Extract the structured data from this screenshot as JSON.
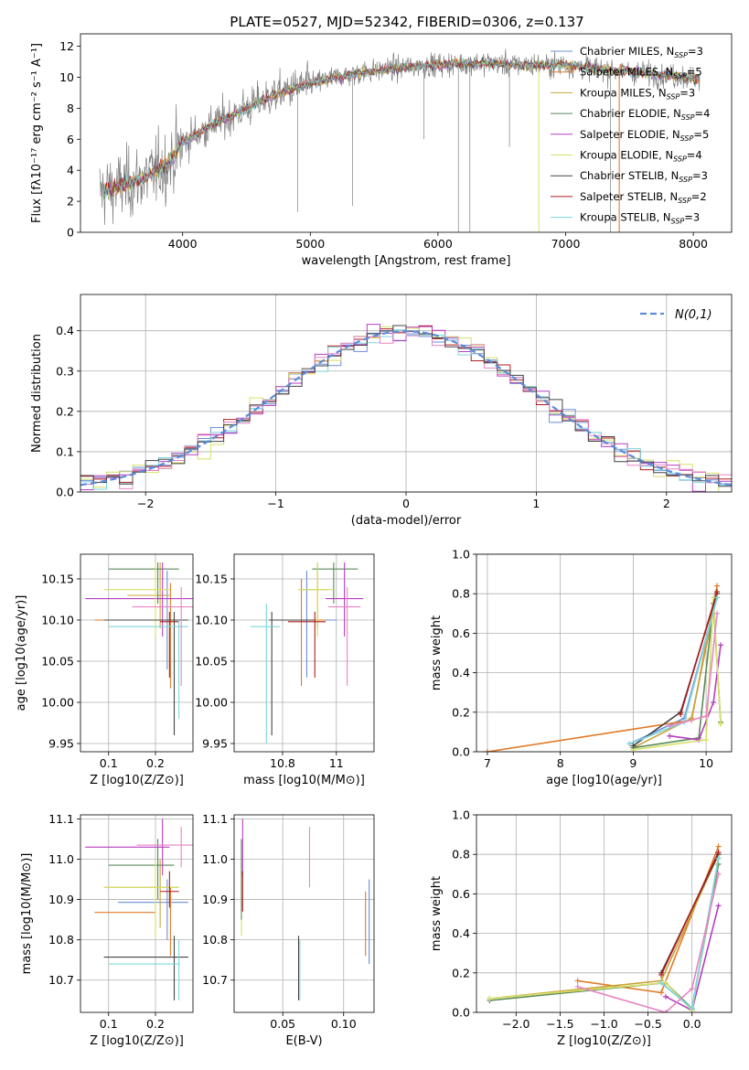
{
  "figure": {
    "title": "PLATE=0527, MJD=52342, FIBERID=0306, z=0.137"
  },
  "colors": {
    "Chabrier MILES": "#6b8fd6",
    "Salpeter MILES": "#e07b26",
    "Kroupa MILES": "#c8a33a",
    "Chabrier ELODIE": "#5a8a5a",
    "Salpeter ELODIE": "#b53ec0",
    "Kroupa ELODIE": "#d6e067",
    "Chabrier STELIB": "#444444",
    "Salpeter STELIB": "#b01c1c",
    "Kroupa STELIB": "#7dd6dc",
    "data": "#808080",
    "normal": "#5b8bd9",
    "pink": "#e884c4"
  },
  "chart_data": [
    {
      "id": "spectrum",
      "type": "line",
      "title": "PLATE=0527, MJD=52342, FIBERID=0306, z=0.137",
      "xlabel": "wavelength [Angstrom, rest frame]",
      "ylabel": "Flux [fλ10⁻¹⁷ erg cm⁻² s⁻¹ A⁻¹]",
      "xlim": [
        3200,
        8300
      ],
      "ylim": [
        0,
        12.8
      ],
      "xticks": [
        4000,
        5000,
        6000,
        7000,
        8000
      ],
      "yticks": [
        0,
        2,
        4,
        6,
        8,
        10,
        12
      ],
      "grid": false,
      "legend_position": "top-right",
      "legend": [
        "Chabrier MILES, N_SSP=3",
        "Salpeter MILES, N_SSP=5",
        "Kroupa MILES, N_SSP=3",
        "Chabrier ELODIE, N_SSP=4",
        "Salpeter ELODIE, N_SSP=5",
        "Kroupa ELODIE, N_SSP=4",
        "Chabrier STELIB, N_SSP=3",
        "Salpeter STELIB, N_SSP=2",
        "Kroupa STELIB, N_SSP=3"
      ],
      "continuum": {
        "x": [
          3350,
          3500,
          3700,
          3900,
          4000,
          4200,
          4400,
          4600,
          4800,
          5000,
          5200,
          5400,
          5600,
          5800,
          6000,
          6200,
          6400,
          6600,
          6800,
          7000,
          7200,
          7400,
          7600,
          7800,
          8050
        ],
        "y": [
          2.6,
          2.9,
          3.5,
          4.5,
          5.8,
          6.8,
          7.6,
          8.4,
          9.1,
          9.6,
          10.0,
          10.3,
          10.5,
          10.7,
          10.8,
          10.9,
          10.9,
          10.8,
          10.8,
          10.8,
          10.6,
          10.4,
          10.3,
          10.1,
          9.9
        ]
      }
    },
    {
      "id": "residuals",
      "type": "line",
      "xlabel": "(data-model)/error",
      "ylabel": "Normed distribution",
      "xlim": [
        -2.5,
        2.5
      ],
      "ylim": [
        0,
        0.49
      ],
      "xticks": [
        -2,
        -1,
        0,
        1,
        2
      ],
      "yticks": [
        0.0,
        0.1,
        0.2,
        0.3,
        0.4
      ],
      "grid": true,
      "legend_position": "top-right",
      "legend": [
        "N(0,1)"
      ]
    },
    {
      "id": "age-vs-Z",
      "type": "scatter",
      "xlabel": "Z [log10(Z/Z⊙)]",
      "ylabel": "age  [log10(age/yr)]",
      "xlim": [
        0.04,
        0.28
      ],
      "ylim": [
        9.94,
        10.18
      ],
      "xticks": [
        0.1,
        0.2
      ],
      "yticks": [
        9.95,
        10.0,
        10.05,
        10.1,
        10.15
      ],
      "grid": true,
      "points": [
        {
          "model": "Chabrier MILES",
          "x": 0.225,
          "y": 10.1,
          "xerr": [
            0.09,
            0.21
          ],
          "yerr": [
            10.04,
            10.16
          ]
        },
        {
          "model": "Salpeter MILES",
          "x": 0.232,
          "y": 10.1,
          "xerr": [
            0.07,
            0.26
          ],
          "yerr": [
            10.017,
            10.145
          ]
        },
        {
          "model": "Kroupa MILES",
          "x": 0.21,
          "y": 10.13,
          "xerr": [
            0.14,
            0.23
          ],
          "yerr": [
            10.09,
            10.17
          ]
        },
        {
          "model": "Chabrier ELODIE",
          "x": 0.205,
          "y": 10.162,
          "xerr": [
            0.1,
            0.25
          ],
          "yerr": [
            10.12,
            10.17
          ]
        },
        {
          "model": "Salpeter ELODIE",
          "x": 0.215,
          "y": 10.126,
          "xerr": [
            0.05,
            0.28
          ],
          "yerr": [
            10.08,
            10.17
          ]
        },
        {
          "model": "Kroupa ELODIE",
          "x": 0.2,
          "y": 10.137,
          "xerr": [
            0.09,
            0.23
          ],
          "yerr": [
            10.08,
            10.17
          ]
        },
        {
          "model": "Chabrier STELIB",
          "x": 0.24,
          "y": 10.1,
          "xerr": [
            0.09,
            0.27
          ],
          "yerr": [
            9.96,
            10.11
          ]
        },
        {
          "model": "Salpeter STELIB",
          "x": 0.23,
          "y": 10.098,
          "xerr": [
            0.21,
            0.25
          ],
          "yerr": [
            10.03,
            10.11
          ]
        },
        {
          "model": "Kroupa STELIB",
          "x": 0.25,
          "y": 10.092,
          "xerr": [
            0.1,
            0.27
          ],
          "yerr": [
            9.98,
            10.1
          ]
        },
        {
          "model": "pink",
          "x": 0.255,
          "y": 10.116,
          "xerr": [
            0.15,
            0.28
          ],
          "yerr": [
            10.02,
            10.14
          ]
        }
      ]
    },
    {
      "id": "age-vs-mass",
      "type": "scatter",
      "xlabel": "mass [log10(M/M⊙)]",
      "xlim": [
        10.62,
        11.14
      ],
      "ylim": [
        9.94,
        10.18
      ],
      "xticks": [
        10.8,
        11.0
      ],
      "yticks": [
        9.95,
        10.0,
        10.05,
        10.1,
        10.15
      ],
      "grid": true,
      "points": [
        {
          "model": "Chabrier MILES",
          "x": 10.89,
          "y": 10.1,
          "xerr": [
            10.77,
            11.0
          ],
          "yerr": [
            10.03,
            10.16
          ]
        },
        {
          "model": "Salpeter MILES",
          "x": 10.87,
          "y": 10.1,
          "xerr": [
            10.78,
            10.96
          ],
          "yerr": [
            10.02,
            10.15
          ]
        },
        {
          "model": "Kroupa MILES",
          "x": 10.93,
          "y": 10.137,
          "xerr": [
            10.86,
            10.97
          ],
          "yerr": [
            10.09,
            10.17
          ]
        },
        {
          "model": "Chabrier ELODIE",
          "x": 10.99,
          "y": 10.162,
          "xerr": [
            10.91,
            11.08
          ],
          "yerr": [
            10.12,
            10.17
          ]
        },
        {
          "model": "Salpeter ELODIE",
          "x": 11.03,
          "y": 10.126,
          "xerr": [
            10.96,
            11.1
          ],
          "yerr": [
            10.08,
            10.17
          ]
        },
        {
          "model": "Kroupa ELODIE",
          "x": 10.93,
          "y": 10.137,
          "xerr": [
            10.86,
            10.99
          ],
          "yerr": [
            10.08,
            10.17
          ]
        },
        {
          "model": "Chabrier STELIB",
          "x": 10.76,
          "y": 10.1,
          "xerr": [
            10.75,
            10.92
          ],
          "yerr": [
            9.96,
            10.11
          ]
        },
        {
          "model": "Salpeter STELIB",
          "x": 10.92,
          "y": 10.098,
          "xerr": [
            10.82,
            10.96
          ],
          "yerr": [
            10.03,
            10.11
          ]
        },
        {
          "model": "Kroupa STELIB",
          "x": 10.74,
          "y": 10.092,
          "xerr": [
            10.68,
            10.79
          ],
          "yerr": [
            9.95,
            10.12
          ]
        },
        {
          "model": "pink",
          "x": 11.04,
          "y": 10.116,
          "xerr": [
            10.97,
            11.09
          ],
          "yerr": [
            10.02,
            10.14
          ]
        }
      ]
    },
    {
      "id": "mass-weight-vs-age",
      "type": "line",
      "xlabel": "age  [log10(age/yr)]",
      "ylabel": "mass weight",
      "xlim": [
        6.85,
        10.35
      ],
      "ylim": [
        0,
        1.0
      ],
      "xticks": [
        7,
        8,
        9,
        10
      ],
      "yticks": [
        0.0,
        0.2,
        0.4,
        0.6,
        0.8,
        1.0
      ],
      "grid": true,
      "series": [
        {
          "model": "Chabrier MILES",
          "x": [
            8.95,
            9.7,
            10.15
          ],
          "y": [
            0.04,
            0.17,
            0.78
          ]
        },
        {
          "model": "Salpeter MILES",
          "x": [
            7.0,
            9.8,
            10.15
          ],
          "y": [
            0.0,
            0.16,
            0.84
          ]
        },
        {
          "model": "Kroupa MILES",
          "x": [
            9.0,
            9.8,
            10.15
          ],
          "y": [
            0.02,
            0.17,
            0.8
          ]
        },
        {
          "model": "Chabrier ELODIE",
          "x": [
            9.0,
            9.9,
            10.1,
            10.2
          ],
          "y": [
            0.02,
            0.07,
            0.75,
            0.15
          ]
        },
        {
          "model": "Salpeter ELODIE",
          "x": [
            9.5,
            9.9,
            10.1,
            10.2
          ],
          "y": [
            0.08,
            0.06,
            0.25,
            0.54
          ]
        },
        {
          "model": "Kroupa ELODIE",
          "x": [
            9.0,
            10.0,
            10.1,
            10.2
          ],
          "y": [
            0.01,
            0.06,
            0.78,
            0.14
          ]
        },
        {
          "model": "Chabrier STELIB",
          "x": [
            9.0,
            9.65,
            10.15
          ],
          "y": [
            0.03,
            0.2,
            0.8
          ]
        },
        {
          "model": "Salpeter STELIB",
          "x": [
            9.65,
            10.15
          ],
          "y": [
            0.19,
            0.81
          ]
        },
        {
          "model": "Kroupa STELIB",
          "x": [
            8.95,
            9.7,
            10.15
          ],
          "y": [
            0.04,
            0.15,
            0.78
          ]
        },
        {
          "model": "pink",
          "x": [
            9.5,
            10.0,
            10.15
          ],
          "y": [
            0.13,
            0.18,
            0.7
          ]
        }
      ]
    },
    {
      "id": "mass-vs-Z",
      "type": "scatter",
      "xlabel": "Z [log10(Z/Z⊙)]",
      "ylabel": "mass [log10(M/M⊙)]",
      "xlim": [
        0.04,
        0.28
      ],
      "ylim": [
        10.62,
        11.11
      ],
      "xticks": [
        0.1,
        0.2
      ],
      "yticks": [
        10.7,
        10.8,
        10.9,
        11.0,
        11.1
      ],
      "grid": true,
      "points": [
        {
          "model": "Chabrier MILES",
          "x": 0.225,
          "y": 10.893,
          "xerr": [
            0.12,
            0.27
          ],
          "yerr": [
            10.8,
            10.95
          ]
        },
        {
          "model": "Salpeter MILES",
          "x": 0.232,
          "y": 10.868,
          "xerr": [
            0.07,
            0.2
          ],
          "yerr": [
            10.76,
            10.93
          ]
        },
        {
          "model": "Kroupa MILES",
          "x": 0.21,
          "y": 10.93,
          "xerr": [
            0.09,
            0.25
          ],
          "yerr": [
            10.83,
            11.0
          ]
        },
        {
          "model": "Chabrier ELODIE",
          "x": 0.205,
          "y": 10.985,
          "xerr": [
            0.1,
            0.24
          ],
          "yerr": [
            10.9,
            11.05
          ]
        },
        {
          "model": "Salpeter ELODIE",
          "x": 0.215,
          "y": 11.03,
          "xerr": [
            0.05,
            0.23
          ],
          "yerr": [
            10.96,
            11.1
          ]
        },
        {
          "model": "Kroupa ELODIE",
          "x": 0.2,
          "y": 10.93,
          "xerr": [
            0.09,
            0.25
          ],
          "yerr": [
            10.8,
            11.0
          ]
        },
        {
          "model": "Chabrier STELIB",
          "x": 0.24,
          "y": 10.757,
          "xerr": [
            0.09,
            0.27
          ],
          "yerr": [
            10.65,
            10.81
          ]
        },
        {
          "model": "Salpeter STELIB",
          "x": 0.23,
          "y": 10.92,
          "xerr": [
            0.21,
            0.25
          ],
          "yerr": [
            10.88,
            10.97
          ]
        },
        {
          "model": "Kroupa STELIB",
          "x": 0.25,
          "y": 10.74,
          "xerr": [
            0.1,
            0.25
          ],
          "yerr": [
            10.65,
            10.8
          ]
        },
        {
          "model": "pink",
          "x": 0.255,
          "y": 11.035,
          "xerr": [
            0.16,
            0.28
          ],
          "yerr": [
            10.98,
            11.08
          ]
        }
      ]
    },
    {
      "id": "mass-vs-ebv",
      "type": "scatter",
      "xlabel": "E(B-V)",
      "xlim": [
        0.01,
        0.125
      ],
      "ylim": [
        10.62,
        11.11
      ],
      "xticks": [
        0.05,
        0.1
      ],
      "yticks": [
        10.7,
        10.8,
        10.9,
        11.0,
        11.1
      ],
      "grid": true,
      "points": [
        {
          "model": "Chabrier MILES",
          "x": 0.121,
          "y": 10.89,
          "yerr": [
            10.74,
            10.95
          ]
        },
        {
          "model": "Salpeter MILES",
          "x": 0.118,
          "y": 10.87,
          "yerr": [
            10.76,
            10.92
          ]
        },
        {
          "model": "Kroupa ELODIE",
          "x": 0.016,
          "y": 10.93,
          "yerr": [
            10.81,
            11.0
          ]
        },
        {
          "model": "Chabrier ELODIE",
          "x": 0.016,
          "y": 10.985,
          "yerr": [
            10.85,
            11.05
          ]
        },
        {
          "model": "Salpeter ELODIE",
          "x": 0.017,
          "y": 11.03,
          "yerr": [
            10.96,
            11.1
          ]
        },
        {
          "model": "Salpeter STELIB",
          "x": 0.017,
          "y": 10.92,
          "yerr": [
            10.87,
            10.97
          ]
        },
        {
          "model": "Chabrier STELIB",
          "x": 0.063,
          "y": 10.757,
          "yerr": [
            10.65,
            10.81
          ]
        },
        {
          "model": "Kroupa STELIB",
          "x": 0.064,
          "y": 10.74,
          "yerr": [
            10.65,
            10.8
          ]
        },
        {
          "model": "pink",
          "x": 0.072,
          "y": 11.035,
          "yerr": [
            10.93,
            11.08
          ]
        }
      ]
    },
    {
      "id": "mass-weight-vs-Z",
      "type": "line",
      "xlabel": "Z [log10(Z/Z⊙)]",
      "ylabel": "mass weight",
      "xlim": [
        -2.45,
        0.45
      ],
      "ylim": [
        0,
        1.0
      ],
      "xticks": [
        -2.0,
        -1.5,
        -1.0,
        -0.5,
        0.0
      ],
      "yticks": [
        0.0,
        0.2,
        0.4,
        0.6,
        0.8,
        1.0
      ],
      "grid": true,
      "series": [
        {
          "model": "Chabrier MILES",
          "x": [
            -0.35,
            0.0,
            0.3
          ],
          "y": [
            0.15,
            0.02,
            0.78
          ]
        },
        {
          "model": "Salpeter MILES",
          "x": [
            -1.3,
            -0.35,
            0.3
          ],
          "y": [
            0.16,
            0.1,
            0.84
          ]
        },
        {
          "model": "Kroupa MILES",
          "x": [
            -2.3,
            -0.35,
            0.3
          ],
          "y": [
            0.07,
            0.16,
            0.8
          ]
        },
        {
          "model": "Chabrier ELODIE",
          "x": [
            -2.3,
            -0.3,
            0.0,
            0.3
          ],
          "y": [
            0.06,
            0.15,
            0.02,
            0.75
          ]
        },
        {
          "model": "Salpeter ELODIE",
          "x": [
            -0.3,
            0.0,
            0.3
          ],
          "y": [
            0.08,
            0.01,
            0.54
          ]
        },
        {
          "model": "Kroupa ELODIE",
          "x": [
            -2.3,
            -0.3,
            0.0,
            0.3
          ],
          "y": [
            0.07,
            0.15,
            0.01,
            0.78
          ]
        },
        {
          "model": "Chabrier STELIB",
          "x": [
            -0.35,
            0.3
          ],
          "y": [
            0.2,
            0.8
          ]
        },
        {
          "model": "Salpeter STELIB",
          "x": [
            -0.35,
            0.3
          ],
          "y": [
            0.19,
            0.81
          ]
        },
        {
          "model": "Kroupa STELIB",
          "x": [
            -0.35,
            0.0,
            0.3
          ],
          "y": [
            0.15,
            0.02,
            0.78
          ]
        },
        {
          "model": "pink",
          "x": [
            -1.3,
            -0.3,
            0.0,
            0.3
          ],
          "y": [
            0.13,
            0.0,
            0.12,
            0.7
          ]
        }
      ]
    }
  ]
}
